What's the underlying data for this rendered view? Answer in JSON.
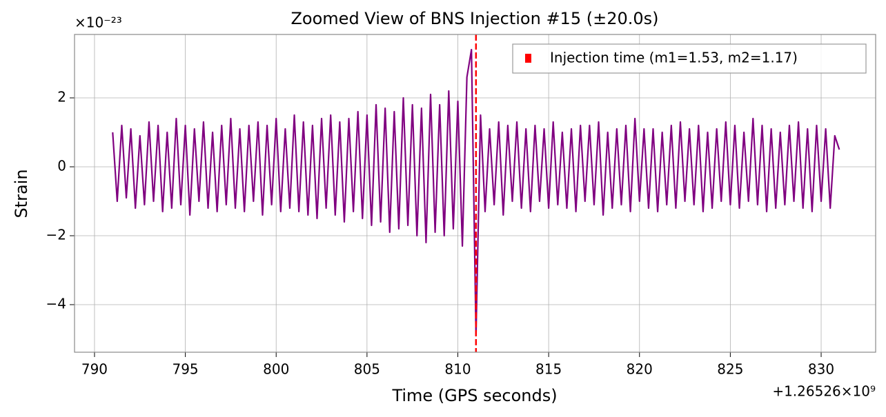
{
  "chart_data": {
    "type": "line",
    "title": "Zoomed View of BNS Injection #15 (±20.0s)",
    "x_label": "Time (GPS seconds)",
    "y_label": "Strain",
    "x_offset_label": "+1.26526×10⁹",
    "y_multiplier_label": "×10⁻²³",
    "xlim": [
      788.9,
      833.0
    ],
    "ylim": [
      -5.38,
      3.84
    ],
    "xticks": [
      790,
      795,
      800,
      805,
      810,
      815,
      820,
      825,
      830
    ],
    "yticks": [
      {
        "value": -4,
        "label": "−4"
      },
      {
        "value": -2,
        "label": "−2"
      },
      0,
      2
    ],
    "grid": true,
    "legend": "upper right",
    "x": [
      791,
      791.25,
      791.5,
      791.75,
      792,
      792.25,
      792.5,
      792.75,
      793,
      793.25,
      793.5,
      793.75,
      794,
      794.25,
      794.5,
      794.75,
      795,
      795.25,
      795.5,
      795.75,
      796,
      796.25,
      796.5,
      796.75,
      797,
      797.25,
      797.5,
      797.75,
      798,
      798.25,
      798.5,
      798.75,
      799,
      799.25,
      799.5,
      799.75,
      800,
      800.25,
      800.5,
      800.75,
      801,
      801.25,
      801.5,
      801.75,
      802,
      802.25,
      802.5,
      802.75,
      803,
      803.25,
      803.5,
      803.75,
      804,
      804.25,
      804.5,
      804.75,
      805,
      805.25,
      805.5,
      805.75,
      806,
      806.25,
      806.5,
      806.75,
      807,
      807.25,
      807.5,
      807.75,
      808,
      808.25,
      808.5,
      808.75,
      809,
      809.25,
      809.5,
      809.75,
      810,
      810.25,
      810.5,
      810.75,
      811,
      811.25,
      811.5,
      811.75,
      812,
      812.25,
      812.5,
      812.75,
      813,
      813.25,
      813.5,
      813.75,
      814,
      814.25,
      814.5,
      814.75,
      815,
      815.25,
      815.5,
      815.75,
      816,
      816.25,
      816.5,
      816.75,
      817,
      817.25,
      817.5,
      817.75,
      818,
      818.25,
      818.5,
      818.75,
      819,
      819.25,
      819.5,
      819.75,
      820,
      820.25,
      820.5,
      820.75,
      821,
      821.25,
      821.5,
      821.75,
      822,
      822.25,
      822.5,
      822.75,
      823,
      823.25,
      823.5,
      823.75,
      824,
      824.25,
      824.5,
      824.75,
      825,
      825.25,
      825.5,
      825.75,
      826,
      826.25,
      826.5,
      826.75,
      827,
      827.25,
      827.5,
      827.75,
      828,
      828.25,
      828.5,
      828.75,
      829,
      829.25,
      829.5,
      829.75,
      830,
      830.25,
      830.5,
      830.75,
      831
    ],
    "series": [
      {
        "color": "#800080",
        "values": [
          1.0,
          -1.0,
          1.2,
          -0.9,
          1.1,
          -1.2,
          0.9,
          -1.1,
          1.3,
          -1.0,
          1.2,
          -1.3,
          1.0,
          -1.2,
          1.4,
          -1.1,
          1.2,
          -1.4,
          1.1,
          -1.0,
          1.3,
          -1.2,
          1.0,
          -1.3,
          1.2,
          -1.1,
          1.4,
          -1.2,
          1.1,
          -1.3,
          1.2,
          -1.0,
          1.3,
          -1.4,
          1.2,
          -1.1,
          1.4,
          -1.3,
          1.1,
          -1.2,
          1.5,
          -1.3,
          1.3,
          -1.4,
          1.2,
          -1.5,
          1.4,
          -1.2,
          1.5,
          -1.4,
          1.3,
          -1.6,
          1.4,
          -1.3,
          1.6,
          -1.5,
          1.5,
          -1.7,
          1.8,
          -1.6,
          1.7,
          -1.9,
          1.6,
          -1.8,
          2.0,
          -1.7,
          1.8,
          -2.0,
          1.7,
          -2.2,
          2.1,
          -1.9,
          1.8,
          -2.0,
          2.2,
          -1.8,
          1.9,
          -2.3,
          2.6,
          3.4,
          -4.9,
          1.5,
          -1.3,
          1.1,
          -1.1,
          1.3,
          -1.4,
          1.2,
          -1.0,
          1.3,
          -1.2,
          1.1,
          -1.3,
          1.2,
          -1.0,
          1.1,
          -1.2,
          1.3,
          -1.1,
          1.0,
          -1.2,
          1.1,
          -1.3,
          1.2,
          -1.0,
          1.2,
          -1.1,
          1.3,
          -1.4,
          1.0,
          -1.2,
          1.1,
          -1.1,
          1.2,
          -1.3,
          1.4,
          -1.0,
          1.1,
          -1.2,
          1.1,
          -1.3,
          1.0,
          -1.1,
          1.2,
          -1.2,
          1.3,
          -1.0,
          1.1,
          -1.1,
          1.2,
          -1.3,
          1.0,
          -1.2,
          1.1,
          -1.0,
          1.3,
          -1.1,
          1.2,
          -1.2,
          1.0,
          -1.0,
          1.4,
          -1.1,
          1.2,
          -1.3,
          1.1,
          -1.2,
          1.0,
          -1.1,
          1.2,
          -1.0,
          1.3,
          -1.2,
          1.1,
          -1.3,
          1.2,
          -1.0,
          1.1,
          -1.2,
          0.9,
          0.5
        ]
      }
    ],
    "vline": {
      "x": 811,
      "color": "#ff0000",
      "name": "Injection time (m1=1.53, m2=1.17)"
    }
  }
}
